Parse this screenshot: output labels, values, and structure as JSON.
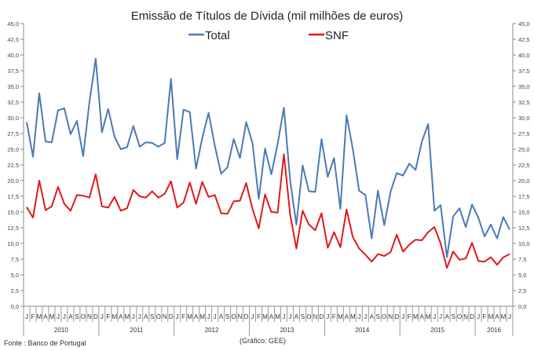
{
  "chart_data": {
    "type": "line",
    "title": "Emissão de Títulos de Dívida (mil milhões de euros)",
    "ylim": [
      0,
      45
    ],
    "ytick_step": 2.5,
    "yticks": [
      "0,0",
      "2,5",
      "5,0",
      "7,5",
      "10,0",
      "12,5",
      "15,0",
      "17,5",
      "20,0",
      "22,5",
      "25,0",
      "27,5",
      "30,0",
      "32,5",
      "35,0",
      "37,5",
      "40,0",
      "42,5",
      "45,0"
    ],
    "months": [
      "J",
      "F",
      "M",
      "A",
      "M",
      "J",
      "J",
      "A",
      "S",
      "O",
      "N",
      "D"
    ],
    "years": [
      "2010",
      "2011",
      "2012",
      "2013",
      "2014",
      "2015",
      "2016"
    ],
    "start": "2010-01",
    "end": "2016-06",
    "legend_position": "top-center",
    "series": [
      {
        "name": "Total",
        "color": "#4a7ab5",
        "values": [
          29.3,
          23.8,
          33.9,
          26.2,
          26.1,
          31.2,
          31.5,
          27.4,
          29.5,
          23.9,
          32.5,
          39.4,
          27.7,
          31.4,
          27.0,
          25.0,
          25.3,
          28.7,
          25.4,
          26.1,
          26.0,
          25.4,
          26.0,
          36.2,
          23.4,
          31.3,
          30.9,
          21.9,
          26.8,
          30.8,
          25.5,
          21.1,
          22.1,
          26.6,
          23.6,
          29.3,
          26.0,
          17.1,
          25.1,
          21.0,
          25.8,
          31.6,
          20.0,
          13.0,
          22.4,
          18.3,
          18.2,
          26.6,
          20.6,
          23.6,
          15.5,
          30.4,
          25.0,
          18.4,
          17.7,
          10.8,
          18.4,
          12.9,
          18.2,
          21.2,
          20.8,
          22.7,
          21.7,
          26.2,
          29.0,
          15.2,
          16.1,
          7.8,
          14.3,
          15.6,
          12.6,
          16.2,
          14.1,
          11.1,
          13.0,
          10.8,
          14.2,
          12.2
        ]
      },
      {
        "name": "SNF",
        "color": "#e0191b",
        "values": [
          15.8,
          14.1,
          20.0,
          15.3,
          15.9,
          19.0,
          16.3,
          15.2,
          17.7,
          17.6,
          17.3,
          21.0,
          15.9,
          15.7,
          17.4,
          15.2,
          15.6,
          18.5,
          17.5,
          17.3,
          18.3,
          17.3,
          17.9,
          19.9,
          15.7,
          16.5,
          19.7,
          16.3,
          19.8,
          17.4,
          17.7,
          14.8,
          14.7,
          16.7,
          16.8,
          19.6,
          15.5,
          12.4,
          17.8,
          15.0,
          14.9,
          24.2,
          14.6,
          9.2,
          15.2,
          13.0,
          12.1,
          14.8,
          9.3,
          11.8,
          9.4,
          15.4,
          11.0,
          9.2,
          8.2,
          7.1,
          8.3,
          8.0,
          8.6,
          11.4,
          8.7,
          9.8,
          10.6,
          10.5,
          11.8,
          12.6,
          10.0,
          6.1,
          8.7,
          7.4,
          7.6,
          10.1,
          7.2,
          7.1,
          7.8,
          6.6,
          7.8,
          8.3
        ]
      }
    ]
  },
  "footer": {
    "source": "Fonte : Banco de Portugal",
    "credit": "(Gráfico: GEE)"
  }
}
